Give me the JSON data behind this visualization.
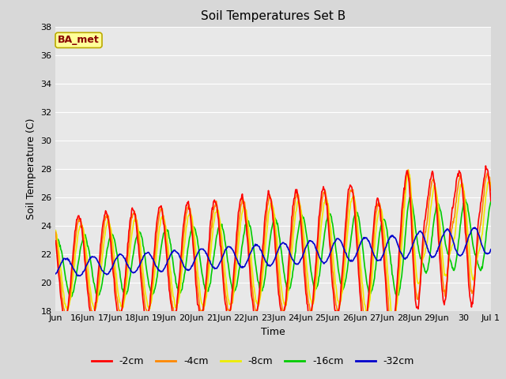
{
  "title": "Soil Temperatures Set B",
  "xlabel": "Time",
  "ylabel": "Soil Temperature (C)",
  "ylim": [
    18,
    38
  ],
  "fig_bg_color": "#d8d8d8",
  "plot_bg_color": "#e8e8e8",
  "grid_color": "#ffffff",
  "annotation_text": "BA_met",
  "annotation_bg": "#ffff99",
  "annotation_border": "#bbaa00",
  "annotation_text_color": "#880000",
  "series_colors": [
    "#ff0000",
    "#ff8800",
    "#eeee00",
    "#00cc00",
    "#0000cc"
  ],
  "series_lw": 1.2,
  "legend_items": [
    "-2cm",
    "-4cm",
    "-8cm",
    "-16cm",
    "-32cm"
  ],
  "legend_colors": [
    "#ff0000",
    "#ff8800",
    "#eeee00",
    "#00cc00",
    "#0000cc"
  ],
  "xtick_labels": [
    "Jun",
    "16Jun",
    "17Jun",
    "18Jun",
    "19Jun",
    "20Jun",
    "21Jun",
    "22Jun",
    "23Jun",
    "24Jun",
    "25Jun",
    "26Jun",
    "27Jun",
    "28Jun",
    "29Jun",
    "30",
    "Jul 1"
  ]
}
